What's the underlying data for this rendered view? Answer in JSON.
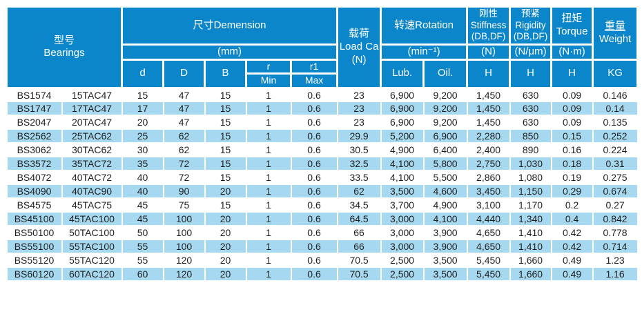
{
  "table": {
    "header": {
      "bearings": {
        "zh": "型号",
        "en": "Bearings"
      },
      "dimension": {
        "title": "尺寸Demension",
        "unit": "(mm)"
      },
      "d": "d",
      "D": "D",
      "B": "B",
      "r": {
        "label": "r",
        "sub": "Min"
      },
      "r1": {
        "label": "r1",
        "sub": "Max"
      },
      "load": {
        "zh": "载荷",
        "en": "Load Ca",
        "unit": "(N)"
      },
      "rotation": {
        "title": "转速Rotation",
        "unit": "(min⁻¹)",
        "lub": "Lub.",
        "oil": "Oil."
      },
      "stiffness": {
        "zh": "刚性",
        "en": "Stiffness",
        "pair": "(DB,DF)",
        "unit": "(N)",
        "col": "H"
      },
      "rigidity": {
        "zh": "预紧",
        "en": "Rigidity",
        "pair": "(DB,DF)",
        "unit": "(N/μm)",
        "col": "H"
      },
      "torque": {
        "zh": "扭矩",
        "en": "Torque",
        "unit": "(N·m)",
        "col": "H"
      },
      "weight": {
        "zh": "重量",
        "en": "Weight",
        "col": "KG"
      }
    },
    "rows": [
      [
        "BS1574",
        "15TAC47",
        "15",
        "47",
        "15",
        "1",
        "0.6",
        "23",
        "6,900",
        "9,200",
        "1,450",
        "630",
        "0.09",
        "0.146"
      ],
      [
        "BS1747",
        "17TAC47",
        "17",
        "47",
        "15",
        "1",
        "0.6",
        "23",
        "6,900",
        "9,200",
        "1,450",
        "630",
        "0.09",
        "0.14"
      ],
      [
        "BS2047",
        "20TAC47",
        "20",
        "47",
        "15",
        "1",
        "0.6",
        "23",
        "6,900",
        "9,200",
        "1,450",
        "630",
        "0.09",
        "0.135"
      ],
      [
        "BS2562",
        "25TAC62",
        "25",
        "62",
        "15",
        "1",
        "0.6",
        "29.9",
        "5,200",
        "6,900",
        "2,280",
        "850",
        "0.15",
        "0.252"
      ],
      [
        "BS3062",
        "30TAC62",
        "30",
        "62",
        "15",
        "1",
        "0.6",
        "30.5",
        "4,900",
        "6,400",
        "2,400",
        "890",
        "0.16",
        "0.224"
      ],
      [
        "BS3572",
        "35TAC72",
        "35",
        "72",
        "15",
        "1",
        "0.6",
        "32.5",
        "4,100",
        "5,800",
        "2,750",
        "1,030",
        "0.18",
        "0.31"
      ],
      [
        "BS4072",
        "40TAC72",
        "40",
        "72",
        "15",
        "1",
        "0.6",
        "33.5",
        "4,100",
        "5,500",
        "2,860",
        "1,080",
        "0.19",
        "0.275"
      ],
      [
        "BS4090",
        "40TAC90",
        "40",
        "90",
        "20",
        "1",
        "0.6",
        "62",
        "3,500",
        "4,600",
        "3,450",
        "1,150",
        "0.29",
        "0.674"
      ],
      [
        "BS4575",
        "45TAC75",
        "45",
        "75",
        "15",
        "1",
        "0.6",
        "34.5",
        "3,700",
        "4,900",
        "3,100",
        "1,170",
        "0.2",
        "0.27"
      ],
      [
        "BS45100",
        "45TAC100",
        "45",
        "100",
        "20",
        "1",
        "0.6",
        "64.5",
        "3,000",
        "4,100",
        "4,440",
        "1,340",
        "0.4",
        "0.842"
      ],
      [
        "BS50100",
        "50TAC100",
        "50",
        "100",
        "20",
        "1",
        "0.6",
        "66",
        "3,000",
        "3,900",
        "4,650",
        "1,410",
        "0.42",
        "0.778"
      ],
      [
        "BS55100",
        "55TAC100",
        "55",
        "100",
        "20",
        "1",
        "0.6",
        "66",
        "3,000",
        "3,900",
        "4,650",
        "1,410",
        "0.42",
        "0.714"
      ],
      [
        "BS55120",
        "55TAC120",
        "55",
        "120",
        "20",
        "1",
        "0.6",
        "70.5",
        "2,500",
        "3,500",
        "5,450",
        "1,660",
        "0.49",
        "1.23"
      ],
      [
        "BS60120",
        "60TAC120",
        "60",
        "120",
        "20",
        "1",
        "0.6",
        "70.5",
        "2,500",
        "3,500",
        "5,450",
        "1,660",
        "0.49",
        "1.16"
      ]
    ]
  },
  "colors": {
    "header_bg": "#0c86ca",
    "alt_row_bg": "#a6d8f0",
    "cell_border": "#ffffff",
    "data_text": "#1f1f1f",
    "header_text": "#ffffff"
  }
}
